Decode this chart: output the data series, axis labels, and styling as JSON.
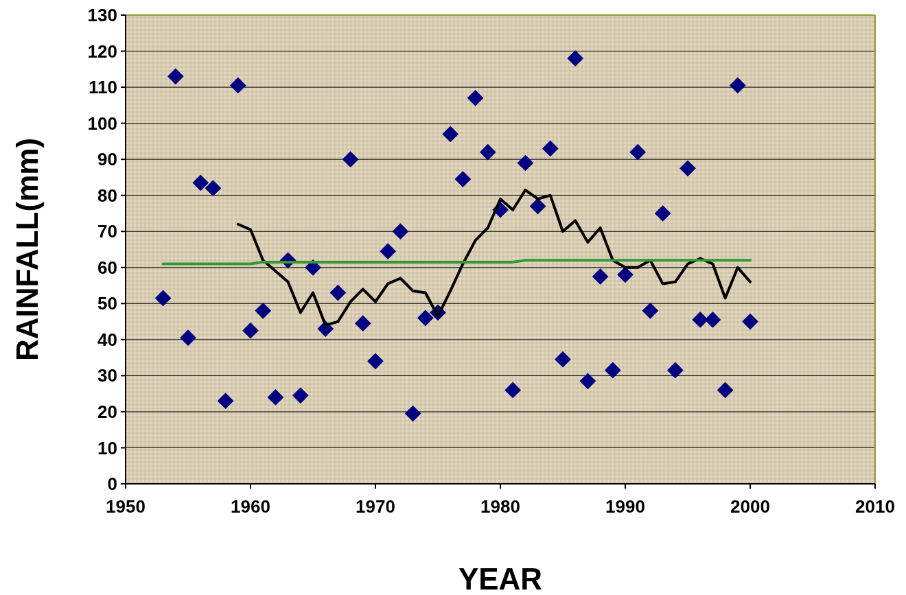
{
  "chart_data": {
    "type": "scatter",
    "xlabel": "YEAR",
    "ylabel": "RAINFALL(mm)",
    "xlim": [
      1950,
      2010
    ],
    "xticks": [
      1950,
      1960,
      1970,
      1980,
      1990,
      2000,
      2010
    ],
    "ylim": [
      0,
      130
    ],
    "yticks": [
      0,
      10,
      20,
      30,
      40,
      50,
      60,
      70,
      80,
      90,
      100,
      110,
      120,
      130
    ],
    "grid": "y",
    "x": [
      1953,
      1954,
      1955,
      1956,
      1957,
      1958,
      1959,
      1960,
      1961,
      1962,
      1963,
      1964,
      1965,
      1966,
      1967,
      1968,
      1969,
      1970,
      1971,
      1972,
      1973,
      1974,
      1975,
      1976,
      1977,
      1978,
      1979,
      1980,
      1981,
      1982,
      1983,
      1984,
      1985,
      1986,
      1987,
      1988,
      1989,
      1990,
      1991,
      1992,
      1993,
      1994,
      1995,
      1996,
      1997,
      1998,
      1999,
      2000
    ],
    "series": [
      {
        "marker": "diamond",
        "color": "#000080",
        "values": [
          51.5,
          113,
          40.5,
          83.5,
          82,
          23,
          110.5,
          42.5,
          48,
          24,
          62,
          24.5,
          60,
          43,
          53,
          90,
          44.5,
          34,
          64.5,
          70,
          19.5,
          46,
          47.5,
          97,
          84.5,
          107,
          92,
          76,
          26,
          89,
          77,
          93,
          34.5,
          118,
          28.5,
          57.5,
          31.5,
          58,
          92,
          48,
          75,
          31.5,
          87.5,
          45.5,
          45.5,
          26,
          110.5,
          45
        ]
      },
      {
        "type": "line",
        "marker": "none",
        "color": "#000000",
        "x": [
          1959,
          1960,
          1961,
          1962,
          1963,
          1964,
          1965,
          1966,
          1967,
          1968,
          1969,
          1970,
          1971,
          1972,
          1973,
          1974,
          1975,
          1976,
          1977,
          1978,
          1979,
          1980,
          1981,
          1982,
          1983,
          1984,
          1985,
          1986,
          1987,
          1988,
          1989,
          1990,
          1991,
          1992,
          1993,
          1994,
          1995,
          1996,
          1997,
          1998,
          1999,
          2000
        ],
        "values": [
          72,
          70.5,
          62,
          59,
          56,
          47.5,
          53,
          44,
          45,
          50.5,
          54,
          50.5,
          55.5,
          57,
          53.5,
          53,
          46.5,
          53.5,
          61,
          67.5,
          71,
          79,
          76,
          81.5,
          79,
          80,
          70,
          73,
          67,
          71,
          62,
          60,
          60,
          62,
          55.5,
          56,
          61,
          62.5,
          61,
          51.5,
          60,
          56
        ]
      },
      {
        "type": "line",
        "marker": "none",
        "color": "#339933",
        "x": [
          1953,
          1960,
          1961,
          1981,
          1982,
          2000
        ],
        "values": [
          61,
          61,
          61.5,
          61.5,
          62,
          62
        ]
      }
    ]
  }
}
